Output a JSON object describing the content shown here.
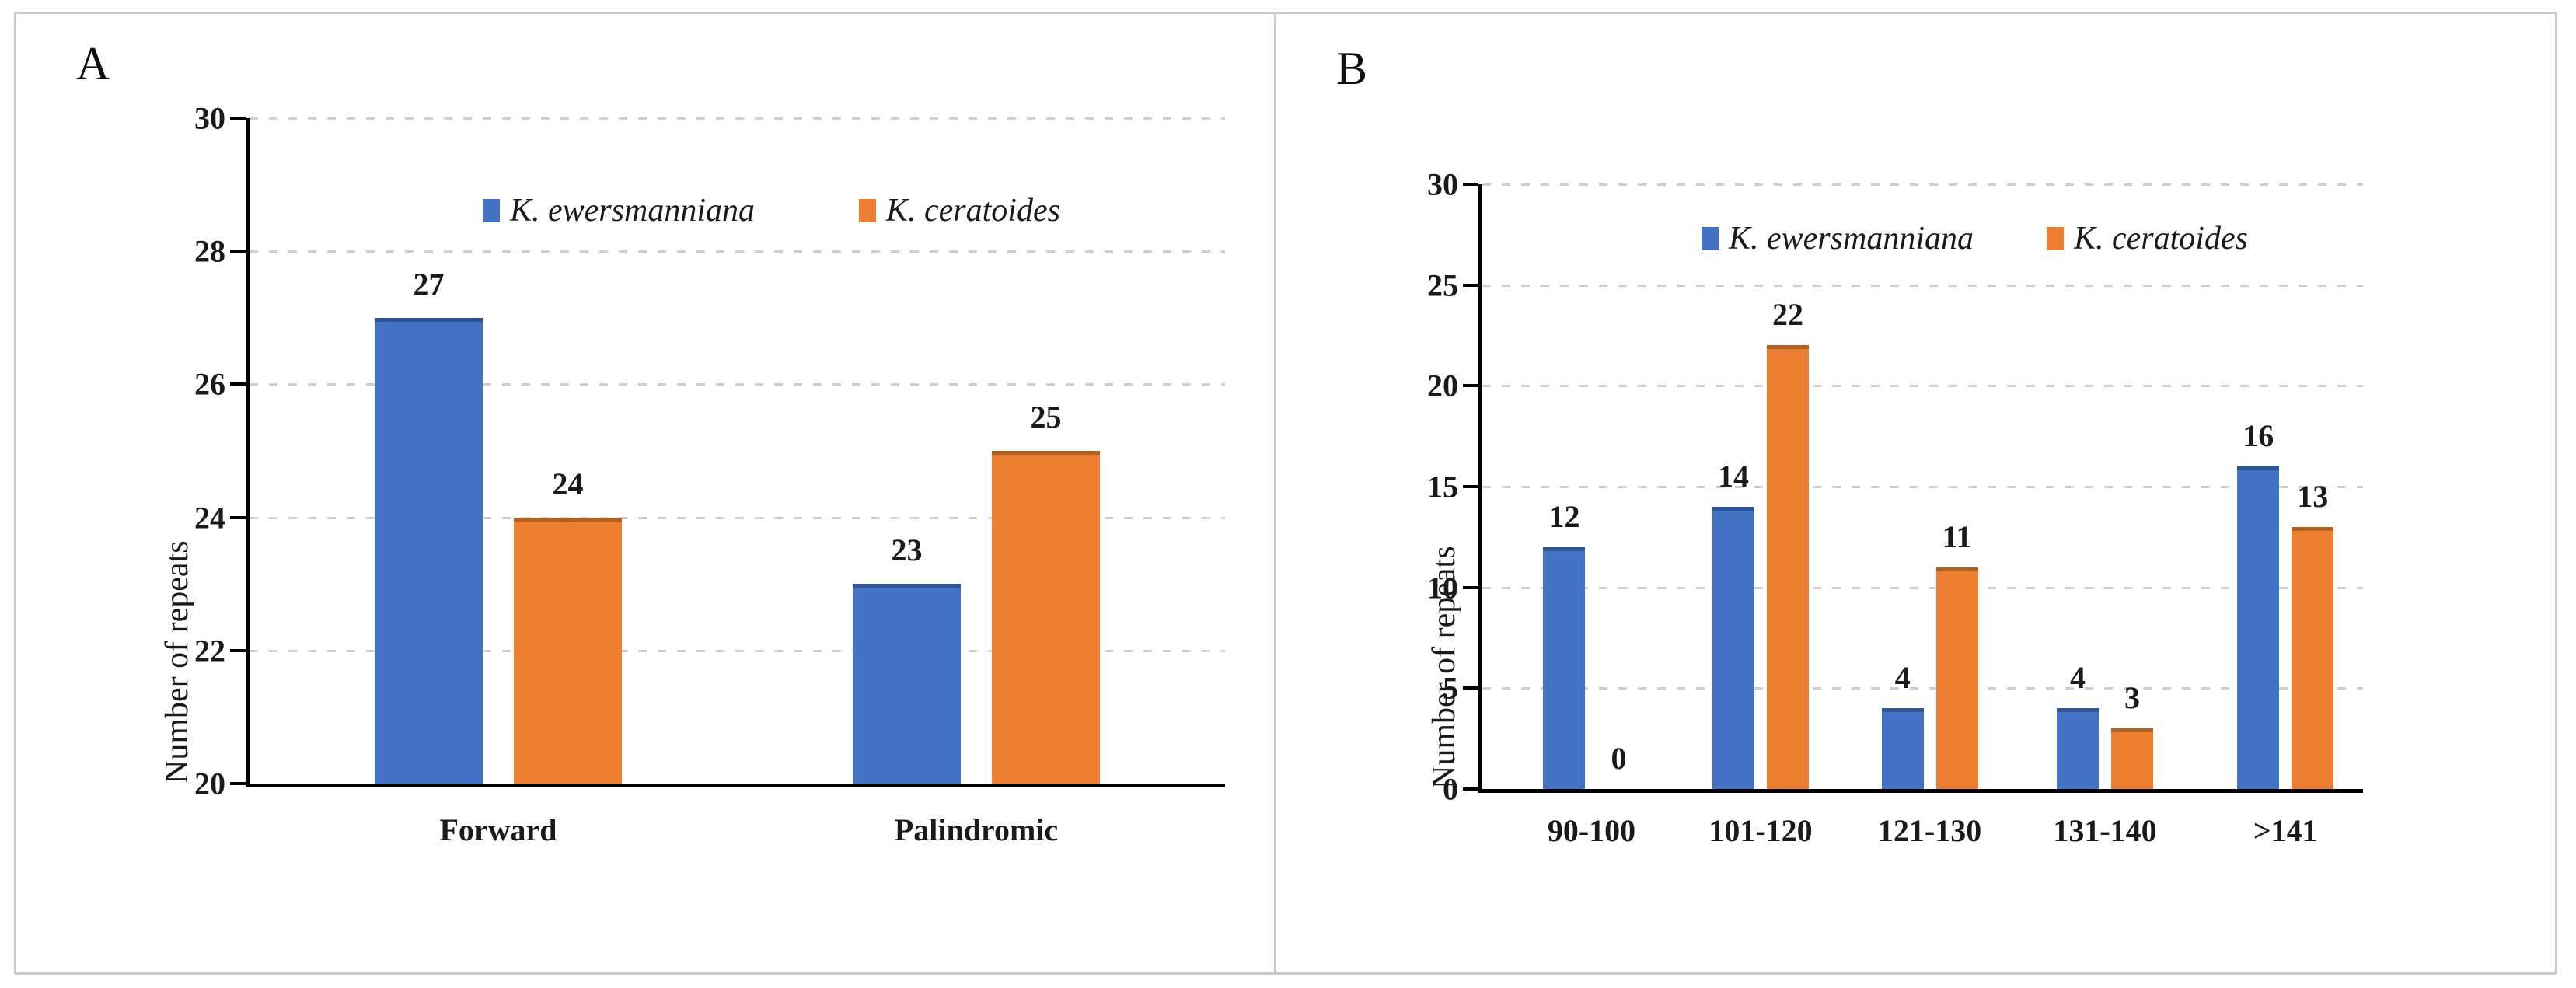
{
  "figure": {
    "panels": [
      {
        "label": "A"
      },
      {
        "label": "B"
      }
    ],
    "style": {
      "background": "#ffffff",
      "frame_border_color": "#c9c9c9",
      "divider_color": "#c9c9c9",
      "grid_color": "#cfcfcf",
      "axis_color": "#000000",
      "text_color": "#1a1a1a"
    }
  },
  "chart_data": [
    {
      "type": "bar",
      "panel": "A",
      "title": "",
      "categories": [
        "Forward",
        "Palindromic"
      ],
      "series": [
        {
          "name": "K. ewersmanniana",
          "color": "#4472C4",
          "edge_color": "#2F5597",
          "values": [
            27,
            23
          ]
        },
        {
          "name": "K. ceratoides",
          "color": "#ED7D31",
          "edge_color": "#B06125",
          "values": [
            24,
            25
          ]
        }
      ],
      "xlabel": "",
      "ylabel": "Number of repeats",
      "ylim": [
        20,
        30
      ],
      "yticks": [
        20,
        22,
        24,
        26,
        28,
        30
      ],
      "grid": "horizontal-dashed",
      "legend_position": "top-center-inside",
      "data_labels": true
    },
    {
      "type": "bar",
      "panel": "B",
      "title": "",
      "categories": [
        "90-100",
        "101-120",
        "121-130",
        "131-140",
        ">141"
      ],
      "series": [
        {
          "name": "K. ewersmanniana",
          "color": "#4472C4",
          "edge_color": "#2F5597",
          "values": [
            12,
            14,
            4,
            4,
            16
          ]
        },
        {
          "name": "K. ceratoides",
          "color": "#ED7D31",
          "edge_color": "#B06125",
          "values": [
            0,
            22,
            11,
            3,
            13
          ]
        }
      ],
      "xlabel": "",
      "ylabel": "Number of repeats",
      "ylim": [
        0,
        30
      ],
      "yticks": [
        0,
        5,
        10,
        15,
        20,
        25,
        30
      ],
      "grid": "horizontal-dashed",
      "legend_position": "top-center-inside",
      "data_labels": true
    }
  ]
}
